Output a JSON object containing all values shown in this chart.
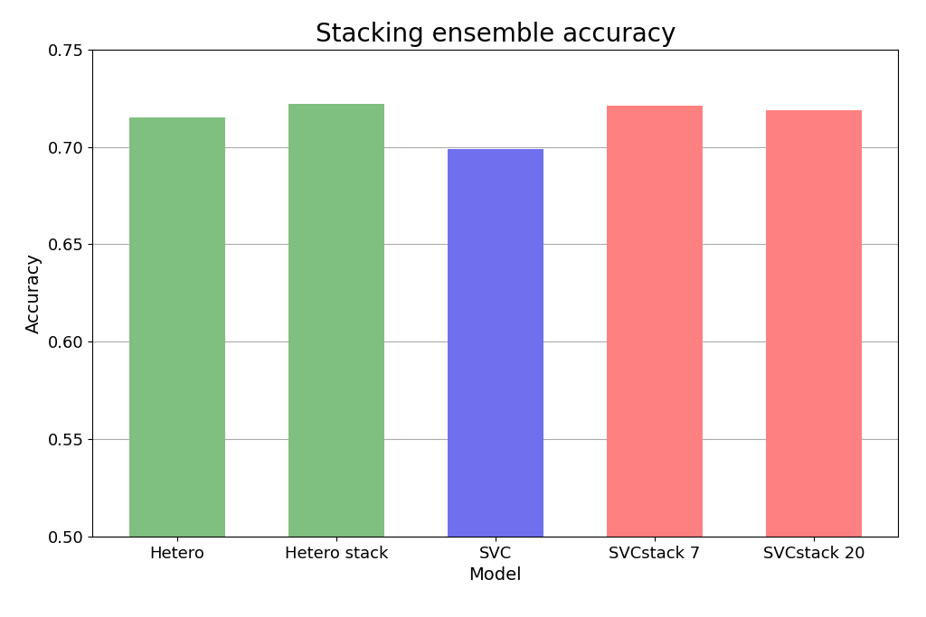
{
  "categories": [
    "Hetero",
    "Hetero stack",
    "SVC",
    "SVCstack 7",
    "SVCstack 20"
  ],
  "values": [
    0.715,
    0.722,
    0.699,
    0.721,
    0.719
  ],
  "bar_colors": [
    "#7fbf7f",
    "#7fbf7f",
    "#7070ef",
    "#ff8080",
    "#ff8080"
  ],
  "title": "Stacking ensemble accuracy",
  "xlabel": "Model",
  "ylabel": "Accuracy",
  "ylim": [
    0.5,
    0.75
  ],
  "yticks": [
    0.5,
    0.55,
    0.6,
    0.65,
    0.7,
    0.75
  ],
  "title_fontsize": 20,
  "label_fontsize": 14,
  "tick_fontsize": 13,
  "background_color": "#ffffff",
  "grid_color": "#aaaaaa"
}
